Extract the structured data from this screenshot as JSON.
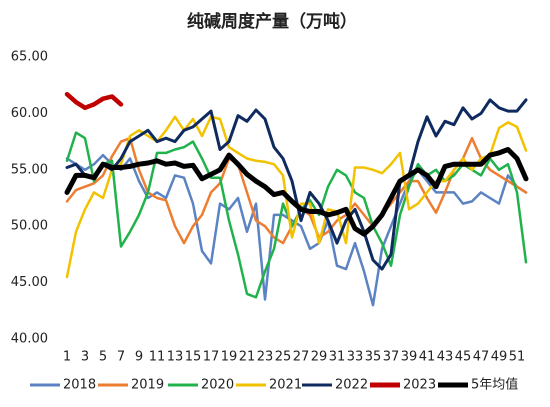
{
  "chart_data": {
    "type": "line",
    "title": "纯碱周度产量（万吨）",
    "categories": [
      "1",
      null,
      "3",
      null,
      "5",
      null,
      "7",
      null,
      "9",
      null,
      "11",
      null,
      "13",
      null,
      "15",
      null,
      "17",
      null,
      "19",
      null,
      "21",
      null,
      "23",
      null,
      "25",
      null,
      "27",
      null,
      "29",
      null,
      "31",
      null,
      "33",
      null,
      "35",
      null,
      "37",
      null,
      "39",
      null,
      "41",
      null,
      "43",
      null,
      "45",
      null,
      "47",
      null,
      "49",
      null,
      "51",
      null
    ],
    "ylim": [
      40,
      65
    ],
    "yticks": [
      {
        "value": 40,
        "label": "40.00"
      },
      {
        "value": 45,
        "label": "45.00"
      },
      {
        "value": 50,
        "label": "50.00"
      },
      {
        "value": 55,
        "label": "55.00"
      },
      {
        "value": 60,
        "label": "60.00"
      },
      {
        "value": 65,
        "label": "65.00"
      }
    ],
    "grid": false,
    "legend": "bottom",
    "series": [
      {
        "name": "2018",
        "color": "#5b83c4",
        "values": [
          56,
          55.5,
          55,
          55.5,
          56.3,
          55.5,
          55,
          56,
          54,
          52.5,
          53,
          52.5,
          54.5,
          54.3,
          52,
          47.8,
          46.7,
          52,
          51.5,
          52.5,
          49.5,
          52,
          43.5,
          51,
          51,
          50.5,
          50,
          48,
          48.5,
          50.5,
          46.5,
          46.2,
          48.5,
          46,
          43,
          48,
          50,
          52,
          54,
          55,
          54,
          53,
          53,
          53,
          52,
          52.2,
          53,
          52.5,
          52,
          54.5,
          53.5,
          53
        ]
      },
      {
        "name": "2019",
        "color": "#ed7d31",
        "values": [
          52.2,
          53.2,
          53.5,
          53.8,
          54.5,
          56.2,
          57.5,
          57.8,
          55,
          53,
          52.5,
          52.3,
          50,
          48.5,
          50,
          51,
          53,
          53.8,
          56,
          55.5,
          53,
          50.5,
          50,
          49,
          48.5,
          50,
          51.5,
          51,
          49,
          49.5,
          50.5,
          51,
          52,
          51,
          50,
          51,
          52,
          53,
          54,
          54,
          52.5,
          51.2,
          53,
          55,
          56,
          57.8,
          56,
          55,
          54.5,
          54,
          53.5,
          53
        ]
      },
      {
        "name": "2020",
        "color": "#22b24c",
        "values": [
          55.8,
          58.3,
          57.8,
          54,
          55.5,
          55.8,
          48.2,
          49.5,
          51,
          53,
          56.5,
          56.5,
          56.8,
          57,
          57.5,
          56,
          54.3,
          54.3,
          50.5,
          47.5,
          44,
          43.7,
          46,
          48,
          52,
          50,
          51.5,
          52.3,
          51,
          53.5,
          55,
          54.5,
          53,
          52.5,
          50,
          48.5,
          46.5,
          51,
          53.5,
          55.5,
          54.5,
          55,
          54,
          54.5,
          55.5,
          55,
          54.5,
          56,
          55,
          55.5,
          53,
          46.8
        ]
      },
      {
        "name": "2021",
        "color": "#f2c200",
        "values": [
          45.5,
          49.5,
          51.5,
          53,
          52.5,
          55,
          55.5,
          58,
          58.5,
          58,
          57.5,
          58.5,
          59.7,
          58.5,
          59.5,
          58,
          59.7,
          59.5,
          57,
          56.5,
          56,
          55.8,
          55.7,
          55.5,
          54.5,
          49,
          52,
          52,
          48.5,
          51.5,
          51.3,
          48.5,
          55.2,
          55.2,
          55,
          54.7,
          55.5,
          56.5,
          51.5,
          52,
          53,
          54,
          54,
          55,
          56,
          55,
          56,
          56.3,
          58.7,
          59.2,
          58.8,
          56.7
        ]
      },
      {
        "name": "2022",
        "color": "#0e2a5e",
        "values": [
          55.2,
          55.5,
          54.5,
          54.3,
          55.5,
          55,
          56,
          57.5,
          58,
          58.5,
          57.5,
          57.8,
          57.5,
          58.5,
          58.8,
          59.5,
          60.2,
          56.8,
          57.5,
          59.8,
          59.3,
          60.3,
          59.5,
          57,
          56,
          54,
          50.5,
          53,
          52,
          50.5,
          48.5,
          50.5,
          51.5,
          49.5,
          47,
          46.2,
          47.5,
          54,
          54.5,
          57.5,
          59.7,
          58,
          59.3,
          59,
          60.5,
          59.5,
          60,
          61.2,
          60.5,
          60.2,
          60.2,
          61.2
        ]
      },
      {
        "name": "2023",
        "color": "#c00000",
        "values": [
          61.7,
          61,
          60.5,
          60.8,
          61.3,
          61.5,
          60.8,
          null,
          null,
          null,
          null,
          null,
          null,
          null,
          null,
          null,
          null,
          null,
          null,
          null,
          null,
          null,
          null,
          null,
          null,
          null,
          null,
          null,
          null,
          null,
          null,
          null,
          null,
          null,
          null,
          null,
          null,
          null,
          null,
          null,
          null,
          null,
          null,
          null,
          null,
          null,
          null,
          null,
          null,
          null,
          null,
          null
        ]
      },
      {
        "name": "5年均值",
        "color": "#000000",
        "values": [
          53,
          54.5,
          54.5,
          54.3,
          55.5,
          55.2,
          55.2,
          55.3,
          55.5,
          55.6,
          55.8,
          55.5,
          55.6,
          55.3,
          55.4,
          54.2,
          54.6,
          55,
          56.3,
          55.5,
          54.6,
          54,
          53.5,
          52.8,
          53,
          52.2,
          51.5,
          51.3,
          51.3,
          51,
          51.2,
          51.5,
          49.8,
          49.3,
          50,
          51,
          52.5,
          54,
          54.5,
          55,
          54.5,
          53.5,
          55.3,
          55.5,
          55.5,
          55.5,
          55.5,
          56.3,
          56.5,
          56.8,
          56,
          54.2
        ]
      }
    ]
  }
}
